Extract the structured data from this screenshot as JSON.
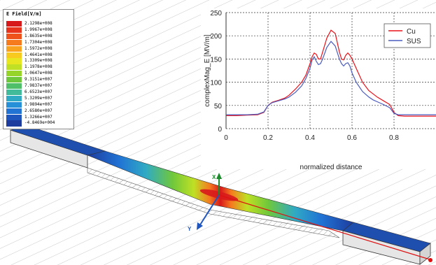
{
  "field_legend": {
    "title": "E Field[V/m]",
    "entries": [
      {
        "label": "2.1298e+008",
        "color": "#d7191c"
      },
      {
        "label": "1.9967e+008",
        "color": "#e8341c"
      },
      {
        "label": "1.8635e+008",
        "color": "#f0521c"
      },
      {
        "label": "1.7304e+008",
        "color": "#f67a1e"
      },
      {
        "label": "1.5972e+008",
        "color": "#f9a21f"
      },
      {
        "label": "1.4641e+008",
        "color": "#f8c91f"
      },
      {
        "label": "1.3309e+008",
        "color": "#e7e620"
      },
      {
        "label": "1.1978e+008",
        "color": "#bfe024"
      },
      {
        "label": "1.0647e+008",
        "color": "#97d42a"
      },
      {
        "label": "9.3151e+007",
        "color": "#6fc83b"
      },
      {
        "label": "7.9837e+007",
        "color": "#4fbf6a"
      },
      {
        "label": "6.6523e+007",
        "color": "#41bb9a"
      },
      {
        "label": "5.3209e+007",
        "color": "#30aac4"
      },
      {
        "label": "3.9894e+007",
        "color": "#2590d8"
      },
      {
        "label": "2.6580e+007",
        "color": "#2173d4"
      },
      {
        "label": "1.3266e+007",
        "color": "#1f56bd"
      },
      {
        "label": "-4.8469e+004",
        "color": "#1d3c9e"
      }
    ]
  },
  "axes_labels": {
    "x": "X",
    "y": "Y"
  },
  "chart_data": {
    "type": "line",
    "xlabel": "normalized distance",
    "ylabel": "complexMag_E [MV/m]",
    "xlim": [
      0,
      1
    ],
    "ylim": [
      0,
      250
    ],
    "xticks": [
      0,
      0.2,
      0.4,
      0.6,
      0.8
    ],
    "yticks": [
      0,
      50,
      100,
      150,
      200,
      250
    ],
    "grid": true,
    "legend_position": "top-right",
    "series": [
      {
        "name": "Cu",
        "color": "#e8121a",
        "x": [
          0,
          0.05,
          0.1,
          0.15,
          0.18,
          0.2,
          0.22,
          0.25,
          0.28,
          0.3,
          0.33,
          0.36,
          0.38,
          0.4,
          0.41,
          0.42,
          0.43,
          0.44,
          0.45,
          0.46,
          0.48,
          0.5,
          0.52,
          0.54,
          0.55,
          0.56,
          0.57,
          0.58,
          0.59,
          0.6,
          0.62,
          0.65,
          0.68,
          0.7,
          0.72,
          0.75,
          0.78,
          0.8,
          0.82,
          0.85,
          0.9,
          0.95,
          1.0
        ],
        "y": [
          28,
          28,
          29,
          30,
          35,
          50,
          57,
          61,
          66,
          72,
          85,
          100,
          115,
          140,
          155,
          163,
          160,
          150,
          150,
          165,
          195,
          212,
          205,
          165,
          150,
          148,
          158,
          163,
          158,
          150,
          130,
          100,
          82,
          75,
          68,
          60,
          52,
          35,
          28,
          27,
          27,
          27,
          27
        ]
      },
      {
        "name": "SUS",
        "color": "#4a5bbd",
        "x": [
          0,
          0.05,
          0.1,
          0.15,
          0.18,
          0.2,
          0.22,
          0.25,
          0.28,
          0.3,
          0.33,
          0.36,
          0.38,
          0.4,
          0.41,
          0.42,
          0.43,
          0.44,
          0.45,
          0.46,
          0.48,
          0.5,
          0.52,
          0.54,
          0.55,
          0.56,
          0.57,
          0.58,
          0.59,
          0.6,
          0.62,
          0.65,
          0.68,
          0.7,
          0.72,
          0.75,
          0.78,
          0.8,
          0.82,
          0.85,
          0.9,
          0.95,
          1.0
        ],
        "y": [
          30,
          30,
          30,
          31,
          36,
          50,
          56,
          60,
          64,
          68,
          78,
          92,
          108,
          130,
          148,
          155,
          145,
          138,
          140,
          150,
          175,
          188,
          178,
          150,
          140,
          135,
          140,
          142,
          135,
          120,
          100,
          80,
          68,
          62,
          58,
          52,
          45,
          33,
          30,
          30,
          30,
          30,
          30
        ]
      }
    ]
  }
}
